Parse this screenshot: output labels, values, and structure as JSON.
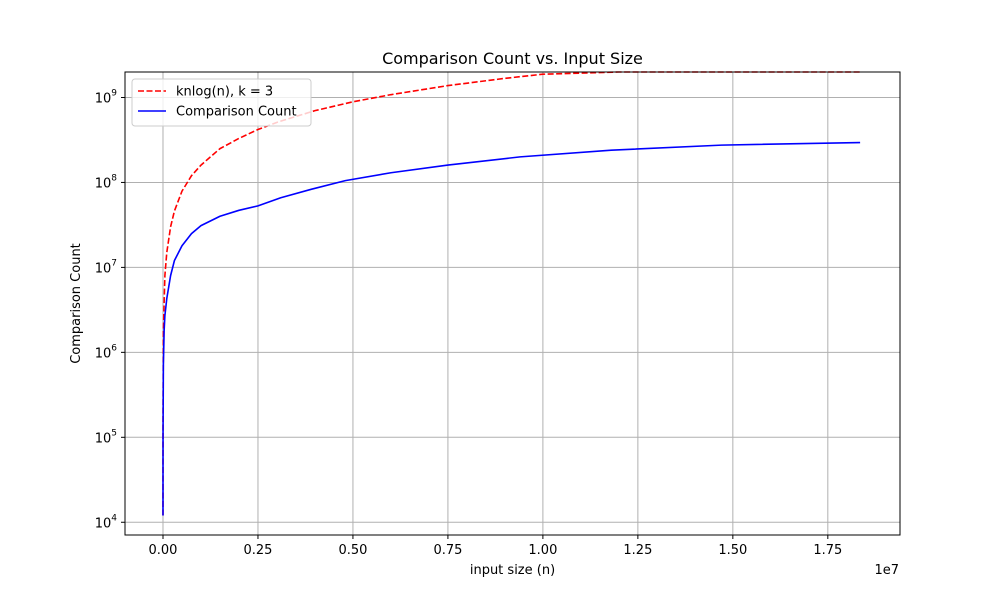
{
  "chart_data": {
    "type": "line",
    "title": "Comparison Count vs. Input Size",
    "xlabel": "input size (n)",
    "ylabel": "Comparison Count",
    "x_offset_label": "1e7",
    "x_scale_factor": 10000000,
    "xlim": [
      -1.0,
      19.4
    ],
    "ylim_log10": [
      3.85,
      9.3
    ],
    "y_scale": "log",
    "x_ticks": [
      {
        "value": 0.0,
        "label": "0.00"
      },
      {
        "value": 2.5,
        "label": "0.25"
      },
      {
        "value": 5.0,
        "label": "0.50"
      },
      {
        "value": 7.5,
        "label": "0.75"
      },
      {
        "value": 10.0,
        "label": "1.00"
      },
      {
        "value": 12.5,
        "label": "1.25"
      },
      {
        "value": 15.0,
        "label": "1.50"
      },
      {
        "value": 17.5,
        "label": "1.75"
      }
    ],
    "y_ticks": [
      {
        "exp": 4,
        "base": "10",
        "sup": "4"
      },
      {
        "exp": 5,
        "base": "10",
        "sup": "5"
      },
      {
        "exp": 6,
        "base": "10",
        "sup": "6"
      },
      {
        "exp": 7,
        "base": "10",
        "sup": "7"
      },
      {
        "exp": 8,
        "base": "10",
        "sup": "8"
      },
      {
        "exp": 9,
        "base": "10",
        "sup": "9"
      }
    ],
    "grid": true,
    "legend_position": "top-left",
    "series": [
      {
        "name": "knlog(n), k = 3",
        "color": "#ff0000",
        "dash": "dashed",
        "x": [
          0.0001,
          0.001,
          0.01,
          0.05,
          0.1,
          0.2,
          0.3,
          0.5,
          0.75,
          1.0,
          1.5,
          2.0,
          2.5,
          3.0,
          4.0,
          5.0,
          6.0,
          7.5,
          9.0,
          10.0,
          12.0,
          14.0,
          16.0,
          18.35
        ],
        "y": [
          12000,
          150000,
          1800000,
          8000000,
          15000000,
          30000000,
          46000000,
          79000000,
          120000000,
          160000000,
          250000000,
          330000000,
          420000000,
          510000000,
          700000000,
          890000000,
          1080000000,
          1380000000,
          1680000000,
          1880000000,
          2290000000,
          2700000000,
          3110000000,
          3600000000
        ]
      },
      {
        "name": "Comparison Count",
        "color": "#0000ff",
        "dash": "solid",
        "x": [
          0.0001,
          0.001,
          0.01,
          0.03,
          0.05,
          0.1,
          0.2,
          0.3,
          0.5,
          0.75,
          1.0,
          1.5,
          2.0,
          2.5,
          3.1,
          3.9,
          4.8,
          6.0,
          7.5,
          9.4,
          11.8,
          14.7,
          18.35
        ],
        "y": [
          12000,
          100000,
          700000,
          1800000,
          2700000,
          4300000,
          8000000,
          12000000,
          18000000,
          25000000,
          31000000,
          40000000,
          47000000,
          53000000,
          66000000,
          83000000,
          105000000,
          130000000,
          160000000,
          200000000,
          240000000,
          275000000,
          295000000
        ]
      }
    ]
  }
}
